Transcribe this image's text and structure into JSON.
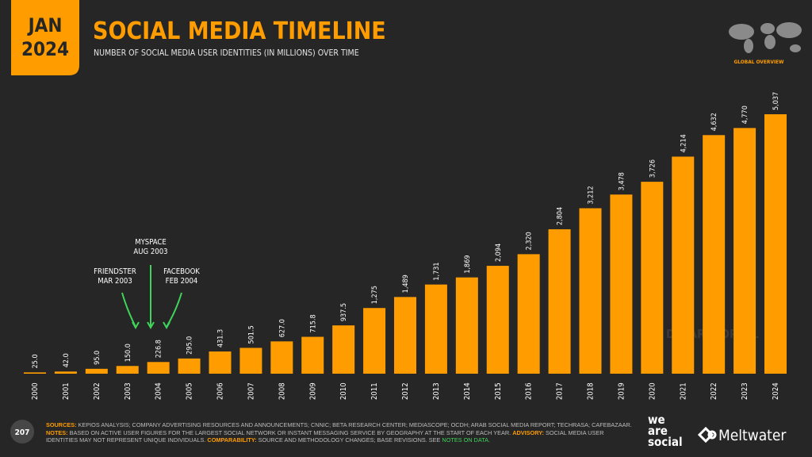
{
  "header": {
    "date_month": "JAN",
    "date_year": "2024",
    "title": "SOCIAL MEDIA TIMELINE",
    "subtitle": "NUMBER OF SOCIAL MEDIA USER IDENTITIES (IN MILLIONS) OVER TIME",
    "section": "GLOBAL OVERVIEW"
  },
  "chart_data": {
    "type": "bar",
    "color": "#ff9d00",
    "categories": [
      "2000",
      "2001",
      "2002",
      "2003",
      "2004",
      "2005",
      "2006",
      "2007",
      "2008",
      "2009",
      "2010",
      "2011",
      "2012",
      "2013",
      "2014",
      "2015",
      "2016",
      "2017",
      "2018",
      "2019",
      "2020",
      "2021",
      "2022",
      "2023",
      "2024"
    ],
    "values": [
      25.0,
      42.0,
      95.0,
      150.0,
      226.8,
      295.0,
      431.3,
      501.5,
      627.0,
      715.8,
      937.5,
      1275,
      1489,
      1731,
      1869,
      2094,
      2320,
      2804,
      3212,
      3478,
      3726,
      4214,
      4632,
      4770,
      5037
    ],
    "value_labels": [
      "25.0",
      "42.0",
      "95.0",
      "150.0",
      "226.8",
      "295.0",
      "431.3",
      "501.5",
      "627.0",
      "715.8",
      "937.5",
      "1,275",
      "1,489",
      "1,731",
      "1,869",
      "2,094",
      "2,320",
      "2,804",
      "3,212",
      "3,478",
      "3,726",
      "4,214",
      "4,632",
      "4,770",
      "5,037"
    ],
    "annotations": [
      {
        "lines": [
          "FRIENDSTER",
          "MAR 2003"
        ],
        "color": "#3fd45a"
      },
      {
        "lines": [
          "MYSPACE",
          "AUG 2003"
        ],
        "color": "#3fd45a"
      },
      {
        "lines": [
          "FACEBOOK",
          "FEB 2004"
        ],
        "color": "#3fd45a"
      }
    ],
    "watermark": "DATAREPORTAL"
  },
  "footer": {
    "page": "207",
    "sources_label": "SOURCES:",
    "sources": "KEPIOS ANALYSIS; COMPANY ADVERTISING RESOURCES AND ANNOUNCEMENTS; CNNIC; BETA RESEARCH CENTER; MEDIASCOPE; OCDH; ARAB SOCIAL MEDIA REPORT; TECHRASA; CAFEBAZAAR.",
    "notes_label": "NOTES:",
    "notes": "BASED ON ACTIVE USER FIGURES FOR THE LARGEST SOCIAL NETWORK OR INSTANT MESSAGING SERVICE BY GEOGRAPHY AT THE START OF EACH YEAR.",
    "advisory_label": "ADVISORY:",
    "advisory": "SOCIAL MEDIA USER IDENTITIES MAY NOT REPRESENT UNIQUE INDIVIDUALS.",
    "comparability_label": "COMPARABILITY:",
    "comparability": "SOURCE AND METHODOLOGY CHANGES; BASE REVISIONS. SEE",
    "notes_link": "NOTES ON DATA."
  },
  "branding": {
    "brand_1": [
      "we",
      "are",
      "social"
    ],
    "brand_2": "Meltwater"
  }
}
